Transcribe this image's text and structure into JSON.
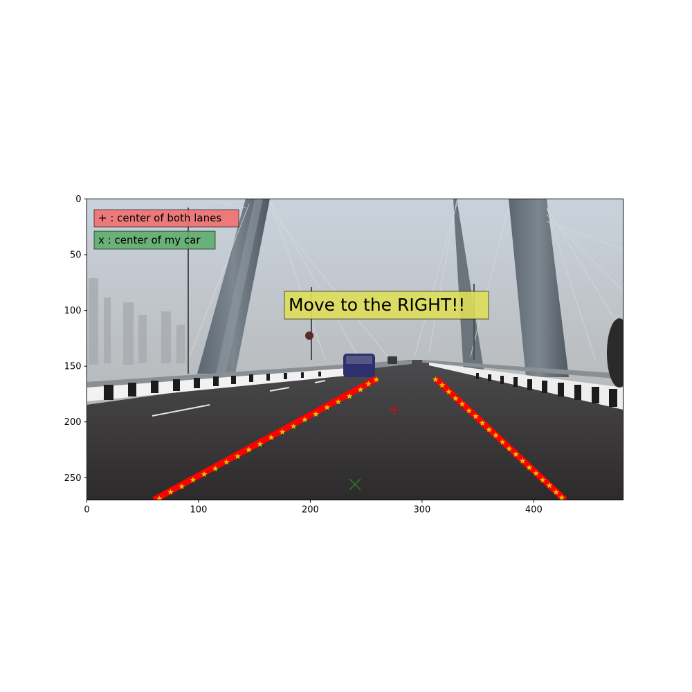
{
  "chart_data": {
    "type": "scatter",
    "title": "",
    "xlabel": "",
    "ylabel": "",
    "xlim": [
      0,
      480
    ],
    "ylim": [
      270,
      0
    ],
    "y_inverted": true,
    "grid": false,
    "x_ticks": [
      0,
      100,
      200,
      300,
      400
    ],
    "y_ticks": [
      0,
      50,
      100,
      150,
      200,
      250
    ],
    "background_image": "road-bridge-dashcam-photo",
    "annotations": [
      {
        "text": "+ : center of both lanes",
        "x": 8,
        "y": 17,
        "box_color": "#f07070"
      },
      {
        "text": "x : center of my car",
        "x": 8,
        "y": 37,
        "box_color": "#5fae6e"
      },
      {
        "text": "Move to the RIGHT!!",
        "x": 180,
        "y": 93,
        "box_color": "#dede5a"
      }
    ],
    "series": [
      {
        "role": "left-lane-fit",
        "style": "line",
        "color": "#ff0000",
        "x": [
          60,
          260
        ],
        "y": [
          270,
          161
        ]
      },
      {
        "role": "left-lane-points",
        "style": "stars",
        "color": "#d4c400",
        "x": [
          65,
          75,
          85,
          95,
          105,
          115,
          125,
          135,
          145,
          155,
          165,
          175,
          185,
          195,
          205,
          215,
          225,
          235,
          245,
          252,
          259
        ],
        "y": [
          269,
          263,
          258,
          252,
          247,
          242,
          236,
          231,
          225,
          220,
          214,
          209,
          204,
          198,
          193,
          187,
          182,
          177,
          171,
          166,
          162
        ]
      },
      {
        "role": "right-lane-fit",
        "style": "line",
        "color": "#ff0000",
        "x": [
          312,
          428
        ],
        "y": [
          161,
          270
        ]
      },
      {
        "role": "right-lane-points",
        "style": "stars",
        "color": "#d4c400",
        "x": [
          312,
          318,
          324,
          330,
          336,
          342,
          348,
          354,
          360,
          366,
          372,
          378,
          384,
          390,
          396,
          402,
          408,
          414,
          420,
          425
        ],
        "y": [
          162,
          167,
          173,
          179,
          184,
          190,
          195,
          201,
          207,
          212,
          218,
          224,
          229,
          235,
          241,
          246,
          252,
          257,
          263,
          268
        ]
      },
      {
        "role": "lanes-center-marker",
        "style": "plus",
        "color": "#ff0000",
        "x": [
          275
        ],
        "y": [
          189
        ]
      },
      {
        "role": "car-center-marker",
        "style": "x",
        "color": "#228b22",
        "x": [
          240
        ],
        "y": [
          256
        ]
      }
    ]
  }
}
